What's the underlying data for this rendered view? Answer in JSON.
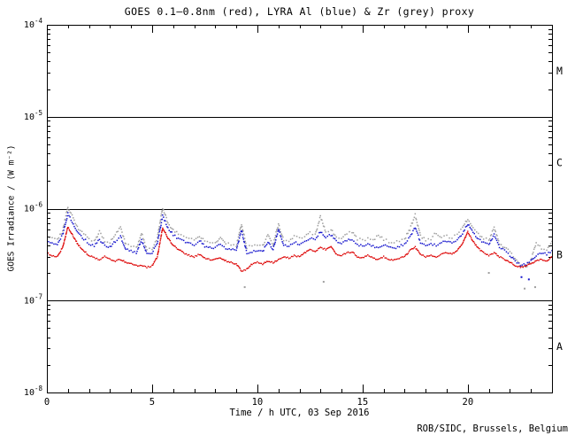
{
  "header": {
    "title": "GOES 0.1–0.8nm (red), LYRA Al (blue) & Zr (grey) proxy"
  },
  "footer": {
    "credit": "ROB/SIDC, Brussels, Belgium"
  },
  "chart_data": {
    "type": "scatter",
    "title": "GOES 0.1–0.8nm (red), LYRA Al (blue) & Zr (grey) proxy",
    "xlabel": "Time / h UTC, 03 Sep 2016",
    "ylabel": "GOES Irradiance / (W m⁻²)",
    "xlim": [
      0,
      24
    ],
    "x_major_ticks": [
      0,
      5,
      10,
      15,
      20
    ],
    "x_minor_step_h": 1,
    "y_scale": "log10",
    "ylim": [
      1e-08,
      0.0001
    ],
    "y_tick_exponents": [
      -4,
      -5,
      -6,
      -7,
      -8
    ],
    "class_boundary_lines": [
      1e-05,
      1e-06,
      1e-07
    ],
    "flare_class_labels": [
      {
        "label": "M",
        "decade": [
          1e-05,
          0.0001
        ]
      },
      {
        "label": "C",
        "decade": [
          1e-06,
          1e-05
        ]
      },
      {
        "label": "B",
        "decade": [
          1e-07,
          1e-06
        ]
      },
      {
        "label": "A",
        "decade": [
          1e-08,
          1e-07
        ]
      }
    ],
    "grid": false,
    "legend": "in title",
    "sample_step_h": 0.25,
    "unit_scale": 1e-07,
    "series": [
      {
        "id": "goes",
        "name": "GOES 0.1–0.8nm",
        "color": "#dd0000",
        "marker": "dense-dots",
        "values": [
          3.3,
          3.1,
          3.0,
          3.8,
          6.3,
          5.0,
          4.0,
          3.5,
          3.1,
          2.9,
          2.8,
          3.0,
          2.8,
          2.7,
          2.8,
          2.6,
          2.5,
          2.4,
          2.4,
          2.3,
          2.4,
          3.0,
          6.2,
          4.8,
          4.0,
          3.6,
          3.3,
          3.1,
          3.0,
          3.2,
          2.9,
          2.8,
          2.8,
          2.9,
          2.7,
          2.6,
          2.5,
          2.1,
          2.2,
          2.5,
          2.6,
          2.5,
          2.7,
          2.6,
          2.8,
          3.0,
          2.9,
          3.1,
          3.0,
          3.3,
          3.6,
          3.4,
          3.8,
          3.6,
          3.9,
          3.2,
          3.1,
          3.3,
          3.4,
          3.0,
          2.9,
          3.1,
          2.9,
          2.8,
          3.0,
          2.8,
          2.75,
          2.9,
          3.0,
          3.5,
          3.8,
          3.2,
          3.0,
          3.1,
          3.0,
          3.2,
          3.3,
          3.2,
          3.5,
          4.2,
          5.6,
          4.4,
          3.7,
          3.3,
          3.1,
          3.3,
          3.0,
          2.8,
          2.6,
          2.4,
          2.3,
          2.4,
          2.5,
          2.7,
          2.8,
          2.7,
          3.0
        ]
      },
      {
        "id": "al",
        "name": "LYRA Al proxy",
        "color": "#1515cc",
        "marker": "dots",
        "values": [
          4.4,
          4.2,
          4.1,
          5.2,
          8.8,
          6.8,
          5.4,
          4.7,
          4.2,
          3.9,
          4.6,
          4.0,
          3.8,
          4.4,
          5.0,
          3.6,
          3.5,
          3.3,
          4.6,
          3.2,
          3.3,
          4.2,
          8.3,
          6.2,
          5.2,
          4.7,
          4.4,
          4.2,
          4.0,
          4.5,
          3.9,
          3.8,
          3.7,
          4.2,
          3.7,
          3.6,
          3.5,
          5.8,
          3.3,
          3.4,
          3.5,
          3.4,
          4.4,
          3.6,
          6.0,
          4.0,
          3.9,
          4.3,
          4.1,
          4.4,
          4.8,
          4.6,
          5.6,
          4.9,
          5.2,
          4.4,
          4.2,
          4.5,
          4.6,
          4.1,
          3.9,
          4.2,
          3.9,
          3.8,
          4.0,
          3.8,
          3.7,
          3.9,
          4.1,
          5.0,
          6.2,
          4.3,
          4.0,
          4.1,
          4.0,
          4.3,
          4.4,
          4.3,
          4.6,
          5.4,
          6.8,
          5.5,
          4.7,
          4.3,
          4.0,
          5.2,
          3.8,
          3.5,
          3.1,
          2.7,
          2.4,
          2.5,
          2.7,
          3.1,
          3.3,
          3.2,
          3.5
        ]
      },
      {
        "id": "zr",
        "name": "LYRA Zr proxy",
        "color": "#9e9e9e",
        "marker": "dots",
        "values": [
          4.9,
          4.7,
          4.6,
          5.8,
          10.5,
          7.8,
          6.1,
          5.3,
          4.7,
          4.4,
          5.6,
          4.5,
          4.3,
          5.2,
          6.2,
          4.1,
          3.9,
          3.7,
          5.4,
          3.6,
          3.7,
          4.8,
          10.2,
          7.0,
          5.9,
          5.3,
          5.0,
          4.7,
          4.5,
          5.1,
          4.4,
          4.3,
          4.2,
          5.0,
          4.2,
          4.1,
          3.9,
          6.8,
          3.8,
          3.9,
          4.0,
          3.9,
          5.2,
          4.1,
          6.8,
          4.5,
          4.4,
          5.0,
          4.7,
          5.0,
          5.5,
          5.2,
          8.2,
          5.6,
          5.9,
          5.0,
          4.8,
          5.4,
          5.6,
          4.7,
          4.5,
          4.8,
          4.5,
          5.2,
          4.6,
          4.4,
          4.2,
          4.5,
          4.7,
          6.0,
          8.5,
          5.0,
          4.6,
          4.7,
          5.5,
          4.9,
          5.0,
          4.9,
          5.2,
          6.1,
          7.8,
          6.2,
          5.3,
          4.8,
          4.5,
          6.2,
          4.2,
          3.8,
          3.4,
          2.9,
          2.4,
          2.3,
          2.8,
          4.2,
          3.7,
          3.6,
          4.4
        ]
      }
    ],
    "outlier_points": [
      {
        "series": "zr",
        "t": 9.4,
        "v": 1.4
      },
      {
        "series": "zr",
        "t": 13.15,
        "v": 1.6
      },
      {
        "series": "zr",
        "t": 21.0,
        "v": 2.0
      },
      {
        "series": "al",
        "t": 22.55,
        "v": 1.8
      },
      {
        "series": "zr",
        "t": 22.7,
        "v": 1.35
      },
      {
        "series": "al",
        "t": 22.9,
        "v": 1.7
      },
      {
        "series": "zr",
        "t": 23.2,
        "v": 1.4
      }
    ]
  }
}
